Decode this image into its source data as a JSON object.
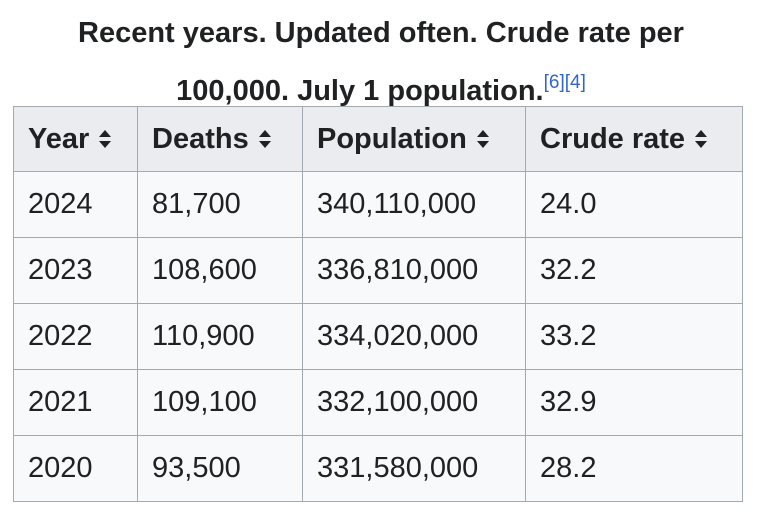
{
  "caption": {
    "line1": "Recent years. Updated often. Crude rate per",
    "line2": "100,000. July 1 population.",
    "refs": [
      "[6]",
      "[4]"
    ]
  },
  "table": {
    "headers": [
      "Year",
      "Deaths",
      "Population",
      "Crude rate"
    ],
    "rows": [
      [
        "2024",
        "81,700",
        "340,110,000",
        "24.0"
      ],
      [
        "2023",
        "108,600",
        "336,810,000",
        "32.2"
      ],
      [
        "2022",
        "110,900",
        "334,020,000",
        "33.2"
      ],
      [
        "2021",
        "109,100",
        "332,100,000",
        "32.9"
      ],
      [
        "2020",
        "93,500",
        "331,580,000",
        "28.2"
      ]
    ]
  },
  "colors": {
    "text": "#202122",
    "link": "#3366cc",
    "header_bg": "#eaecf0",
    "cell_bg": "#f8f9fa",
    "border": "#a2a9b1"
  },
  "icons": {
    "sort": "sort-updown-icon"
  }
}
